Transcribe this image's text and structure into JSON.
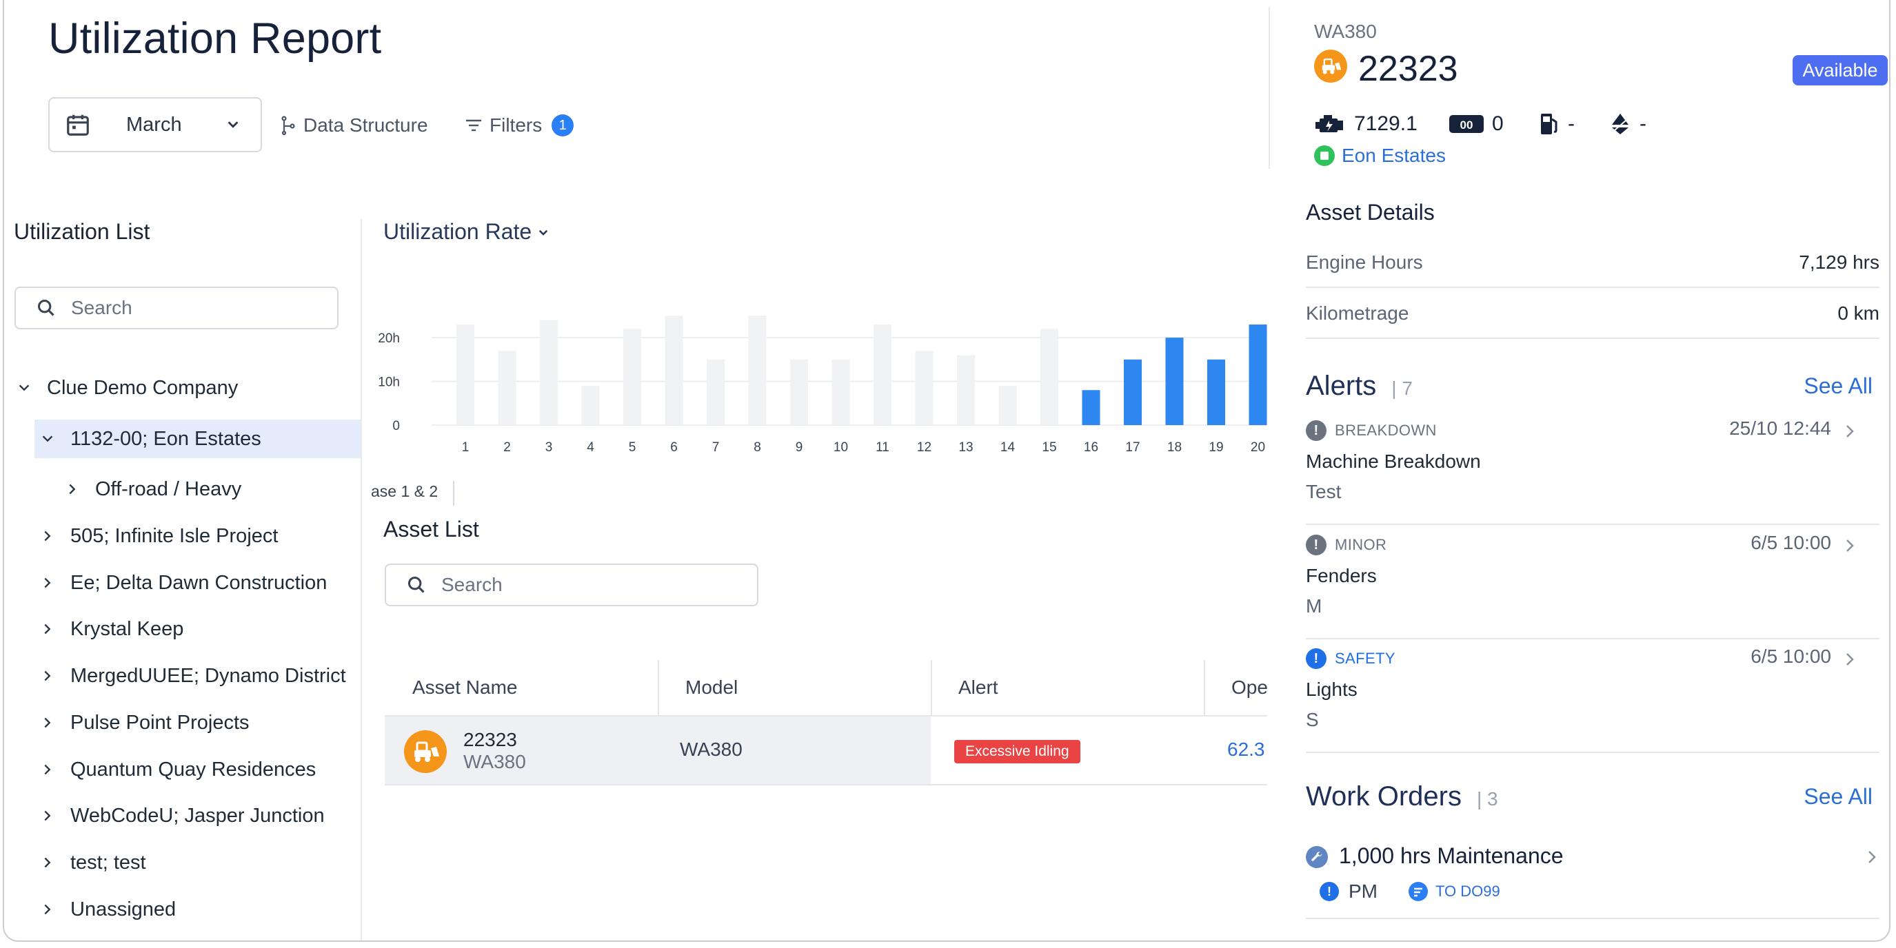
{
  "header": {
    "title": "Utilization Report",
    "month": "March",
    "data_structure_label": "Data Structure",
    "filters_label": "Filters",
    "filters_count": "1"
  },
  "sidebar": {
    "title": "Utilization List",
    "search_placeholder": "Search",
    "tree": [
      {
        "label": "Clue Demo Company",
        "expanded": true,
        "level": 0
      },
      {
        "label": "1132-00; Eon Estates",
        "expanded": true,
        "level": 1,
        "selected": true
      },
      {
        "label": "Off-road / Heavy",
        "expanded": false,
        "level": 2
      },
      {
        "label": "505; Infinite Isle Project",
        "expanded": false,
        "level": 1
      },
      {
        "label": "Ee; Delta Dawn Construction",
        "expanded": false,
        "level": 1
      },
      {
        "label": "Krystal Keep",
        "expanded": false,
        "level": 1
      },
      {
        "label": "MergedUUEE; Dynamo District",
        "expanded": false,
        "level": 1
      },
      {
        "label": "Pulse Point Projects",
        "expanded": false,
        "level": 1
      },
      {
        "label": "Quantum Quay Residences",
        "expanded": false,
        "level": 1
      },
      {
        "label": "WebCodeU; Jasper Junction",
        "expanded": false,
        "level": 1
      },
      {
        "label": "test; test",
        "expanded": false,
        "level": 1
      },
      {
        "label": "Unassigned",
        "expanded": false,
        "level": 1
      }
    ]
  },
  "chart_title": "Utilization Rate",
  "chart_data": {
    "type": "bar",
    "categories": [
      "1",
      "2",
      "3",
      "4",
      "5",
      "6",
      "7",
      "8",
      "9",
      "10",
      "11",
      "12",
      "13",
      "14",
      "15",
      "16",
      "17",
      "18",
      "19",
      "20"
    ],
    "values": [
      23,
      17,
      24,
      9,
      22,
      25,
      15,
      25,
      15,
      15,
      23,
      17,
      16,
      9,
      22,
      8,
      15,
      20,
      15,
      23
    ],
    "highlighted_from": "16",
    "y_ticks": [
      "0",
      "10h",
      "20h"
    ],
    "ylim": [
      0,
      26
    ],
    "colors": {
      "muted": "#f1f2f4",
      "active": "#2e86f0"
    }
  },
  "phase_tab": "ase 1 & 2",
  "asset_list": {
    "title": "Asset List",
    "search_placeholder": "Search",
    "columns": [
      "Asset Name",
      "Model",
      "Alert",
      "Ope"
    ],
    "rows": [
      {
        "name": "22323",
        "sub": "WA380",
        "model": "WA380",
        "alert": "Excessive Idling",
        "op": "62.3"
      }
    ]
  },
  "asset_panel": {
    "model": "WA380",
    "id": "22323",
    "status": "Available",
    "engine_hours_stat": "7129.1",
    "odometer_stat": "0",
    "fuel_stat": "-",
    "def_stat": "-",
    "site": "Eon Estates",
    "details_title": "Asset Details",
    "details": [
      {
        "label": "Engine Hours",
        "value": "7,129 hrs"
      },
      {
        "label": "Kilometrage",
        "value": "0 km"
      }
    ],
    "alerts_title": "Alerts",
    "alerts_count": "7",
    "see_all": "See All",
    "alerts": [
      {
        "level": "BREAKDOWN",
        "color": "#6b7280",
        "time": "25/10 12:44",
        "title": "Machine Breakdown",
        "desc": "Test"
      },
      {
        "level": "MINOR",
        "color": "#6b7280",
        "time": "6/5 10:00",
        "title": "Fenders",
        "desc": "M"
      },
      {
        "level": "SAFETY",
        "color": "#1e6fe8",
        "time": "6/5 10:00",
        "title": "Lights",
        "desc": "S"
      }
    ],
    "work_orders_title": "Work Orders",
    "work_orders_count": "3",
    "work_order": {
      "title": "1,000 hrs Maintenance",
      "type": "PM",
      "status": "TO DO99"
    }
  }
}
